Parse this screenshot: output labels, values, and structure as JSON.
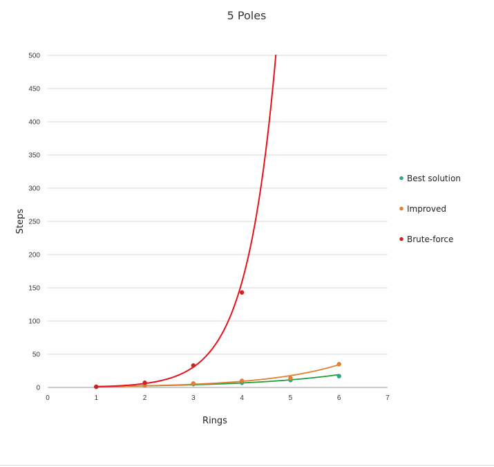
{
  "chart_data": {
    "type": "scatter",
    "title": "5 Poles",
    "xlabel": "Rings",
    "ylabel": "Steps",
    "xlim": [
      0,
      7
    ],
    "ylim": [
      0,
      500
    ],
    "xticks": [
      "0",
      "1",
      "2",
      "3",
      "4",
      "5",
      "6",
      "7"
    ],
    "yticks": [
      "0",
      "50",
      "100",
      "150",
      "200",
      "250",
      "300",
      "350",
      "400",
      "450",
      "500"
    ],
    "grid": "horizontal",
    "legend_position": "right",
    "trendlines": "exponential",
    "series": [
      {
        "name": "Best solution",
        "color": "#2ca58d",
        "line_color": "#1f9e3a",
        "x": [
          1,
          2,
          3,
          4,
          5,
          6
        ],
        "y": [
          1,
          3,
          5,
          7,
          11,
          17
        ]
      },
      {
        "name": "Improved",
        "color": "#e67e30",
        "line_color": "#e67e30",
        "x": [
          1,
          2,
          3,
          4,
          5,
          6
        ],
        "y": [
          1,
          3,
          6,
          10,
          14,
          35
        ]
      },
      {
        "name": "Brute-force",
        "color": "#cc2222",
        "line_color": "#e8101a",
        "x": [
          1,
          2,
          3,
          4
        ],
        "y": [
          1,
          7,
          33,
          143
        ]
      }
    ]
  }
}
